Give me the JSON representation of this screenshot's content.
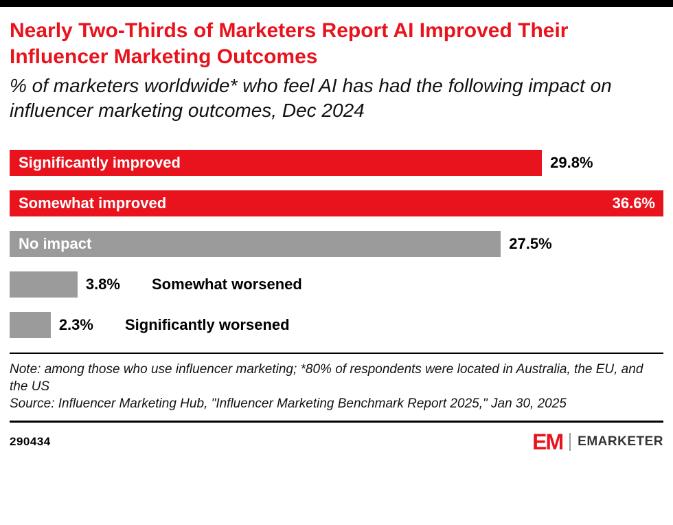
{
  "colors": {
    "accent_red": "#e8131d",
    "bar_gray": "#9b9b9b",
    "black": "#000000"
  },
  "chart_data": {
    "type": "bar",
    "orientation": "horizontal",
    "title": "Nearly Two-Thirds of Marketers Report AI Improved Their Influencer Marketing Outcomes",
    "subtitle": "% of marketers worldwide* who feel AI has had the following impact on influencer marketing outcomes, Dec 2024",
    "categories": [
      "Significantly improved",
      "Somewhat improved",
      "No impact",
      "Somewhat worsened",
      "Significantly worsened"
    ],
    "values": [
      29.8,
      36.6,
      27.5,
      3.8,
      2.3
    ],
    "xlim": [
      0,
      36.6
    ],
    "xmax": 36.6,
    "grid": false,
    "legend": false,
    "bars": [
      {
        "label": "Significantly improved",
        "value": 29.8,
        "display": "29.8%",
        "color": "red",
        "label_pos": "inside",
        "value_pos": "outside"
      },
      {
        "label": "Somewhat improved",
        "value": 36.6,
        "display": "36.6%",
        "color": "red",
        "label_pos": "inside",
        "value_pos": "inside"
      },
      {
        "label": "No impact",
        "value": 27.5,
        "display": "27.5%",
        "color": "gray",
        "label_pos": "inside",
        "value_pos": "outside"
      },
      {
        "label": "Somewhat worsened",
        "value": 3.8,
        "display": "3.8%",
        "color": "gray",
        "label_pos": "outside",
        "value_pos": "outside"
      },
      {
        "label": "Significantly worsened",
        "value": 2.3,
        "display": "2.3%",
        "color": "gray",
        "label_pos": "outside",
        "value_pos": "outside"
      }
    ]
  },
  "notes": {
    "note": "Note: among those who use influencer marketing; *80% of respondents were located in Australia, the EU, and the US",
    "source": "Source: Influencer Marketing Hub, \"Influencer Marketing Benchmark Report 2025,\" Jan 30, 2025"
  },
  "footer": {
    "chart_id": "290434",
    "logo_mark": "EM",
    "logo_text": "EMARKETER"
  }
}
